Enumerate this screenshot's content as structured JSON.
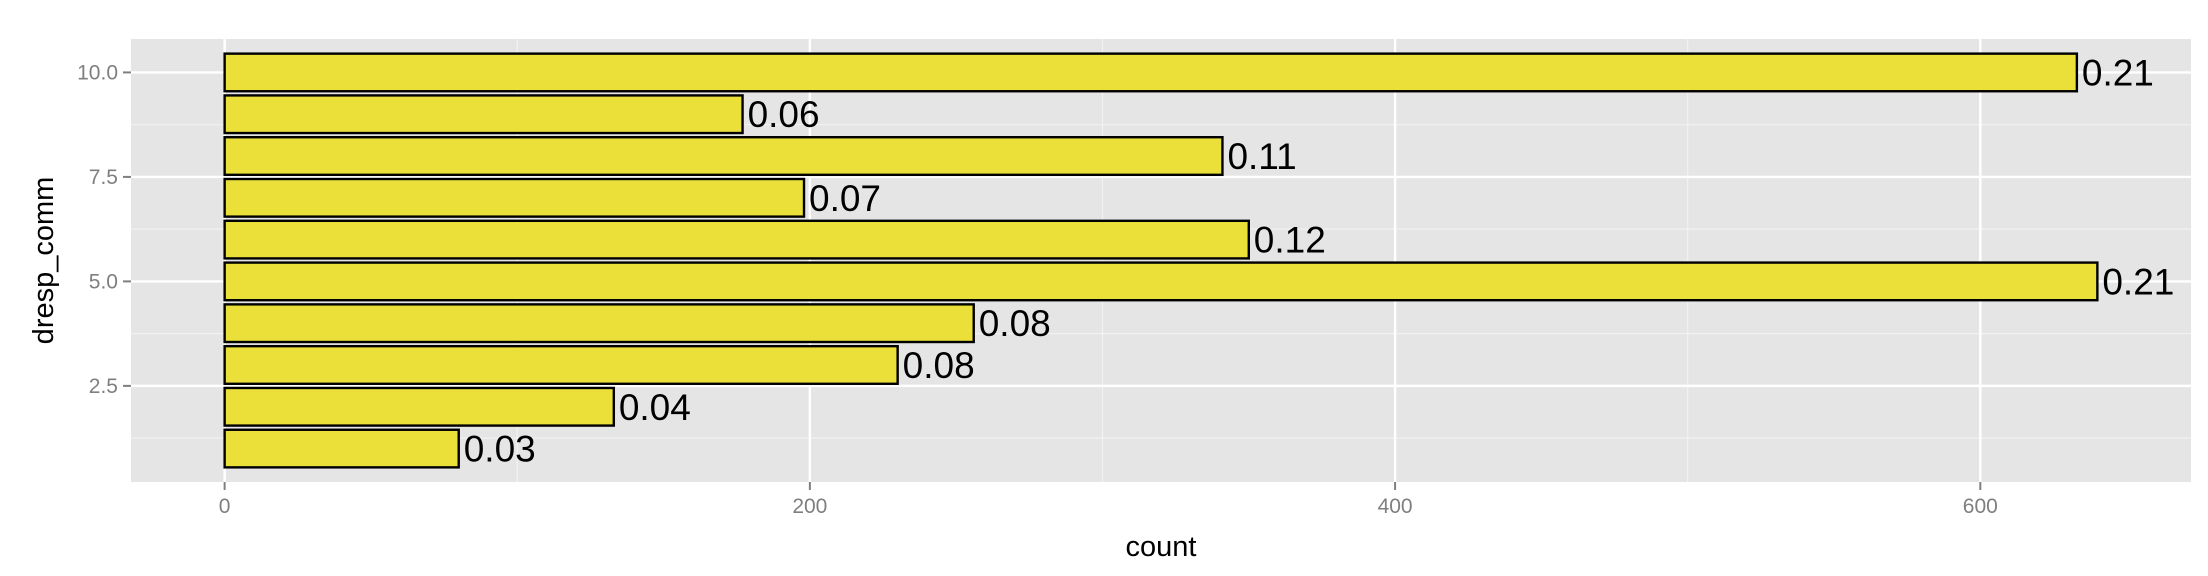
{
  "chart_data": {
    "type": "bar",
    "orientation": "horizontal",
    "xlabel": "count",
    "ylabel": "dresp_comm",
    "categories": [
      1,
      2,
      3,
      4,
      5,
      6,
      7,
      8,
      9,
      10
    ],
    "values": [
      80,
      133,
      230,
      256,
      640,
      350,
      198,
      341,
      177,
      633
    ],
    "labels": [
      "0.03",
      "0.04",
      "0.08",
      "0.08",
      "0.21",
      "0.12",
      "0.07",
      "0.11",
      "0.06",
      "0.21"
    ],
    "xlim": [
      -32,
      672
    ],
    "ylim": [
      0.2,
      10.8
    ],
    "xticks": [
      0,
      200,
      400,
      600
    ],
    "xtick_labels": [
      "0",
      "200",
      "400",
      "600"
    ],
    "yticks": [
      2.5,
      5.0,
      7.5,
      10.0
    ],
    "ytick_labels": [
      "2.5",
      "5.0",
      "7.5",
      "10.0"
    ],
    "grid": true,
    "colors": {
      "panel": "#e5e5e5",
      "grid_major": "#ffffff",
      "grid_minor": "#f2f2f2",
      "bar_fill": "#ebe03a",
      "bar_stroke": "#000000",
      "tick": "#7f7f7f"
    }
  }
}
